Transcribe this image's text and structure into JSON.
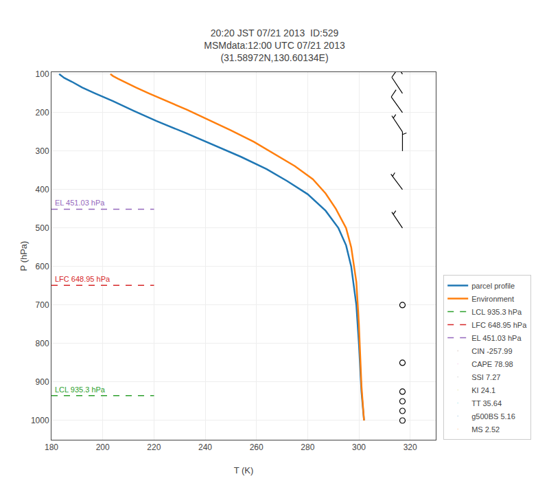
{
  "chart_data": {
    "type": "line",
    "title": "20:20 JST 07/21 2013  ID:529\nMSMdata:12:00 UTC 07/21 2013\n(31.58972N,130.60134E)",
    "x_label": "T (K)",
    "y_label": "P (hPa)",
    "xlim": [
      180,
      330
    ],
    "ylim": [
      1050,
      95
    ],
    "xticks": [
      180,
      200,
      220,
      240,
      260,
      280,
      300,
      320
    ],
    "yticks": [
      100,
      200,
      300,
      400,
      500,
      600,
      700,
      800,
      900,
      1000
    ],
    "grid": true,
    "legend": "lower right",
    "series": [
      {
        "name": "parcel profile",
        "color": "#1f77b4",
        "x": [
          183,
          185,
          188,
          192,
          197,
          204,
          212,
          221,
          232,
          243,
          254,
          264,
          272,
          280,
          287,
          292,
          295,
          297,
          299,
          300,
          301,
          302
        ],
        "values": [
          100,
          110,
          120,
          135,
          150,
          170,
          195,
          222,
          252,
          283,
          315,
          347,
          378,
          412,
          455,
          500,
          545,
          600,
          700,
          800,
          925,
          1000
        ]
      },
      {
        "name": "Environment",
        "color": "#ff7f0e",
        "x": [
          203,
          204,
          206,
          209,
          213,
          218,
          225,
          233,
          241,
          250,
          259,
          267,
          275,
          282,
          287,
          291,
          295,
          297,
          299,
          300,
          301,
          302
        ],
        "values": [
          100,
          105,
          112,
          122,
          135,
          150,
          170,
          193,
          218,
          246,
          276,
          307,
          339,
          373,
          410,
          450,
          500,
          550,
          640,
          750,
          910,
          1000
        ]
      }
    ],
    "levels": [
      {
        "name": "LCL 935.3 hPa",
        "value": 935.3,
        "color": "#2ca02c",
        "line_style": "dash"
      },
      {
        "name": "LFC 648.95 hPa",
        "value": 648.95,
        "color": "#d62728",
        "line_style": "dash"
      },
      {
        "name": "EL 451.03 hPa",
        "value": 451.03,
        "color": "#9467bd",
        "line_style": "dash"
      }
    ],
    "stats": [
      "CIN -257.99",
      "CAPE 78.98",
      "SSI 7.27",
      "KI 24.1",
      "TT 35.64",
      "g500BS 5.16",
      "MS 2.52"
    ],
    "wind_barbs": {
      "x": 317,
      "pressures": [
        100,
        150,
        200,
        250,
        300,
        400,
        500,
        700,
        850,
        925,
        950,
        975,
        1000
      ],
      "u": [
        8,
        6,
        5,
        4,
        0,
        3,
        2,
        0,
        0,
        0,
        0,
        0,
        0
      ],
      "v": [
        -12,
        -9,
        -7,
        -6,
        -5,
        -4,
        -3,
        0,
        0,
        0,
        0,
        0,
        0
      ],
      "color": "black"
    }
  }
}
